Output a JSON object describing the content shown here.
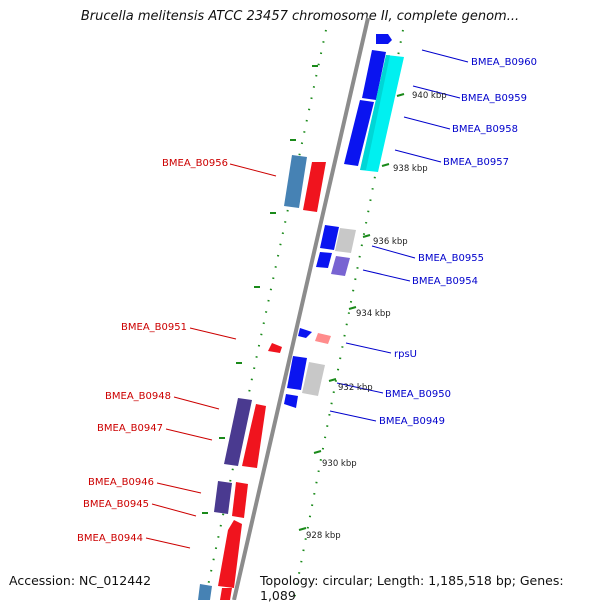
{
  "title": "Brucella melitensis ATCC 23457 chromosome II, complete genom...",
  "footer": {
    "accession": "Accession: NC_012442",
    "topology": "Topology: circular; Length: 1,185,518 bp; Genes: 1,089"
  },
  "colors": {
    "backbone": "#8c8c8c",
    "forward_label": "#0000cc",
    "reverse_label": "#cc0000",
    "dotted_track": "#1a8a1a",
    "forward_gene": "#0a14f0",
    "reverse_gene": "#f0141e",
    "cyan_gene": "#00f0f0",
    "steelblue_gene": "#4682b4",
    "purple_gene": "#4a3a90",
    "grey_gene": "#c8c8c8",
    "pink_gene": "#ff8c8c",
    "lavender_gene": "#7864d2"
  },
  "ticks": [
    {
      "label": "940 kbp"
    },
    {
      "label": "938 kbp"
    },
    {
      "label": "936 kbp"
    },
    {
      "label": "934 kbp"
    },
    {
      "label": "932 kbp"
    },
    {
      "label": "930 kbp"
    },
    {
      "label": "928 kbp"
    }
  ],
  "genes_forward": [
    {
      "label": "BMEA_B0960"
    },
    {
      "label": "BMEA_B0959"
    },
    {
      "label": "BMEA_B0958"
    },
    {
      "label": "BMEA_B0957"
    },
    {
      "label": "BMEA_B0955"
    },
    {
      "label": "BMEA_B0954"
    },
    {
      "label": "rpsU"
    },
    {
      "label": "BMEA_B0950"
    },
    {
      "label": "BMEA_B0949"
    }
  ],
  "genes_reverse": [
    {
      "label": "BMEA_B0956"
    },
    {
      "label": "BMEA_B0951"
    },
    {
      "label": "BMEA_B0948"
    },
    {
      "label": "BMEA_B0947"
    },
    {
      "label": "BMEA_B0946"
    },
    {
      "label": "BMEA_B0945"
    },
    {
      "label": "BMEA_B0944"
    }
  ]
}
